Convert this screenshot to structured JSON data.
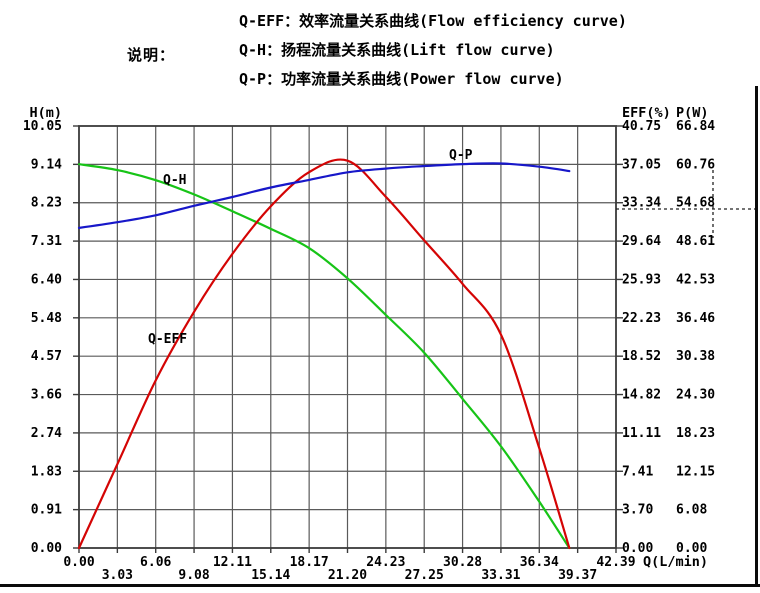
{
  "header": {
    "note_label": "说明：",
    "legend_lines": [
      "Q-EFF：效率流量关系曲线(Flow efficiency curve)",
      "Q-H：扬程流量关系曲线(Lift flow curve)",
      "Q-P：功率流量关系曲线(Power flow curve)"
    ]
  },
  "chart_data": {
    "type": "line",
    "title": "Pump performance curves (flow vs head / efficiency / power)",
    "grid": true,
    "axes": {
      "x": {
        "label": "Q(L/min)",
        "range": [
          0,
          42.39
        ],
        "ticks": [
          "0.00",
          "3.03",
          "6.06",
          "9.08",
          "12.11",
          "15.14",
          "18.17",
          "21.20",
          "24.23",
          "27.25",
          "30.28",
          "33.31",
          "36.34",
          "39.37",
          "42.39"
        ]
      },
      "left": {
        "label": "H(m)",
        "range": [
          0,
          10.05
        ],
        "ticks": [
          "10.05",
          "9.14",
          "8.23",
          "7.31",
          "6.40",
          "5.48",
          "4.57",
          "3.66",
          "2.74",
          "1.83",
          "0.91",
          "0.00"
        ]
      },
      "right_eff": {
        "label": "EFF(%)",
        "range": [
          0,
          40.75
        ],
        "ticks": [
          "40.75",
          "37.05",
          "33.34",
          "29.64",
          "25.93",
          "22.23",
          "18.52",
          "14.82",
          "11.11",
          "7.41",
          "3.70",
          "0.00"
        ]
      },
      "right_p": {
        "label": "P(W)",
        "range": [
          0,
          66.84
        ],
        "ticks": [
          "66.84",
          "60.76",
          "54.68",
          "48.61",
          "42.53",
          "36.46",
          "30.38",
          "24.30",
          "18.23",
          "12.15",
          "6.08",
          "0.00"
        ]
      }
    },
    "x": [
      0,
      3.03,
      6.06,
      9.08,
      12.11,
      15.14,
      18.17,
      21.2,
      24.23,
      27.25,
      30.28,
      33.31,
      36.34,
      38.7
    ],
    "series": [
      {
        "name": "Q-H",
        "axis": "left",
        "color": "#17c417",
        "values": [
          9.14,
          9.0,
          8.76,
          8.42,
          8.02,
          7.6,
          7.14,
          6.42,
          5.55,
          4.65,
          3.55,
          2.42,
          1.1,
          0.0
        ]
      },
      {
        "name": "Q-EFF",
        "axis": "right_eff",
        "color": "#d40404",
        "values": [
          0.0,
          8.1,
          16.2,
          22.8,
          28.4,
          33.0,
          36.3,
          37.4,
          33.9,
          29.7,
          25.5,
          20.6,
          9.6,
          0.0
        ]
      },
      {
        "name": "Q-P",
        "axis": "right_p",
        "color": "#1717c9",
        "values": [
          50.7,
          51.6,
          52.7,
          54.2,
          55.6,
          57.1,
          58.3,
          59.5,
          60.1,
          60.5,
          60.8,
          60.9,
          60.4,
          59.7
        ]
      }
    ],
    "colors": {
      "grid": "#5a5a5a",
      "border": "#3a3a3a",
      "text": "#000000",
      "dashed_marker": "#222222"
    }
  }
}
